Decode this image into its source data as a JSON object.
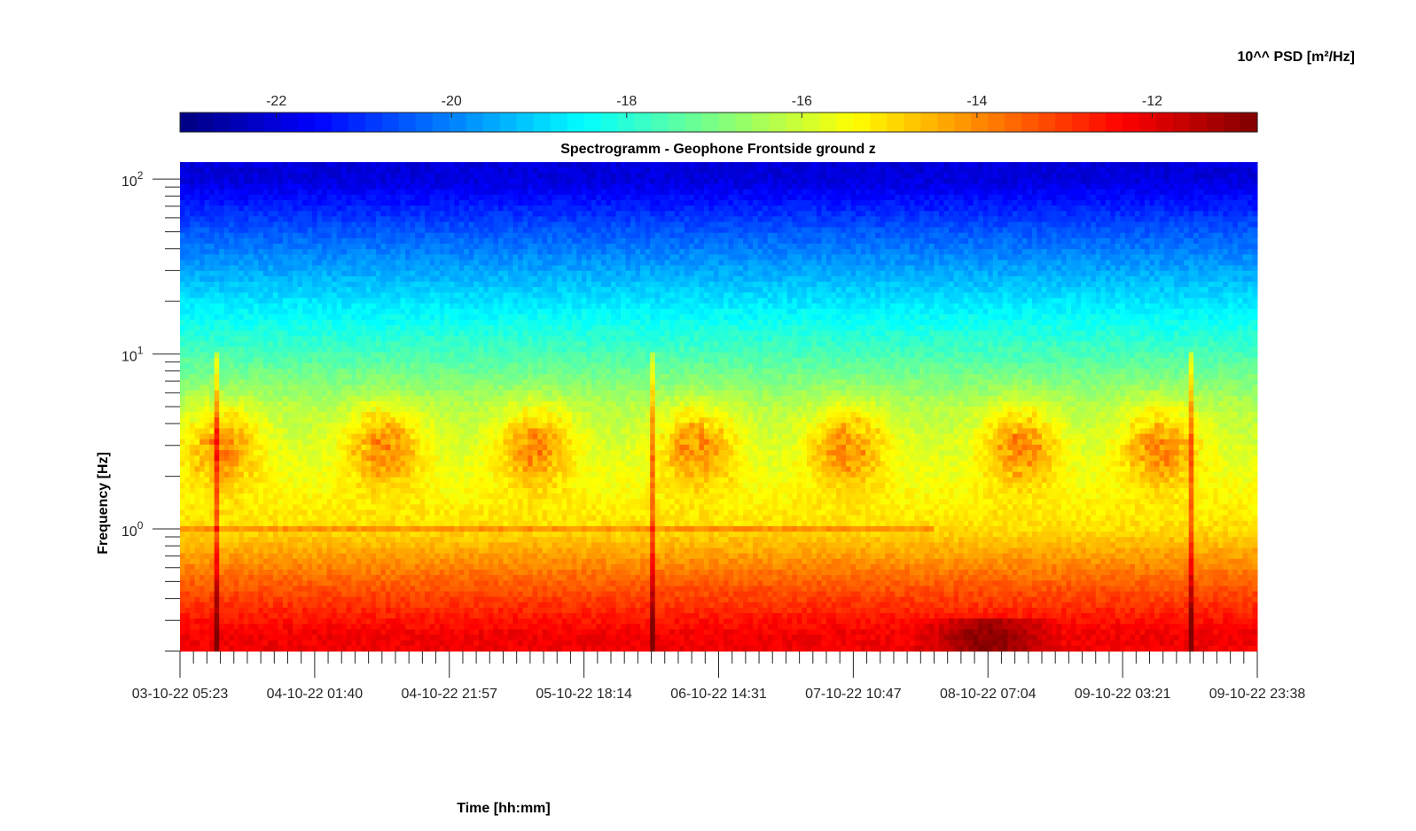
{
  "colorbar": {
    "title": "10^^ PSD [m²/Hz]",
    "range": [
      -23.1,
      -10.8
    ],
    "ticks": [
      {
        "value": -22,
        "label": "-22"
      },
      {
        "value": -20,
        "label": "-20"
      },
      {
        "value": -18,
        "label": "-18"
      },
      {
        "value": -16,
        "label": "-16"
      },
      {
        "value": -14,
        "label": "-14"
      },
      {
        "value": -12,
        "label": "-12"
      }
    ],
    "colormap": "jet"
  },
  "chart_data": {
    "type": "heatmap",
    "title": "Spectrogramm - Geophone Frontside ground z",
    "xlabel": "Time [hh:mm]",
    "ylabel": "Frequency [Hz]",
    "yscale": "log",
    "ylim": [
      0.2,
      125
    ],
    "x_ticks": [
      "03-10-22 05:23",
      "04-10-22 01:40",
      "04-10-22 21:57",
      "05-10-22 18:14",
      "06-10-22 14:31",
      "07-10-22 10:47",
      "08-10-22 07:04",
      "09-10-22 03:21",
      "09-10-22 23:38"
    ],
    "y_ticks": [
      {
        "value": 1,
        "base": "10",
        "exp": "0"
      },
      {
        "value": 10,
        "base": "10",
        "exp": "1"
      },
      {
        "value": 100,
        "base": "10",
        "exp": "2"
      }
    ],
    "levels_by_frequency": [
      {
        "freq_hz": 100,
        "log10_psd": -22.0
      },
      {
        "freq_hz": 50,
        "log10_psd": -20.5
      },
      {
        "freq_hz": 20,
        "log10_psd": -18.8
      },
      {
        "freq_hz": 10,
        "log10_psd": -17.6
      },
      {
        "freq_hz": 5,
        "log10_psd": -16.3
      },
      {
        "freq_hz": 2,
        "log10_psd": -15.6
      },
      {
        "freq_hz": 1,
        "log10_psd": -15.0
      },
      {
        "freq_hz": 0.5,
        "log10_psd": -13.5
      },
      {
        "freq_hz": 0.25,
        "log10_psd": -12.2
      }
    ],
    "daily_activity_bursts_center_frequency_hz": 3,
    "dominant_activity_log10_psd": -13.8,
    "transient_events_time_fraction": [
      0.035,
      0.44,
      0.94
    ],
    "peak_low_frequency_region": {
      "time_fraction": [
        0.68,
        0.82
      ],
      "log10_psd": -11.3
    }
  }
}
